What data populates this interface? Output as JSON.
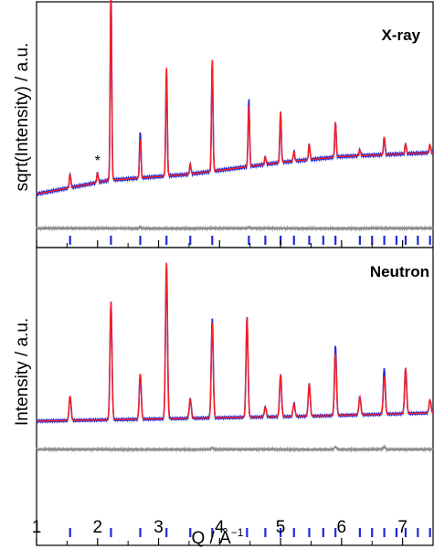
{
  "chart_data": [
    {
      "type": "line",
      "panel": "X-ray",
      "label": "X-ray",
      "ylabel": "sqrt(Intensity) / a.u.",
      "xlim": [
        1,
        7.5
      ],
      "colors": {
        "observed": "#1f2bd6",
        "calculated": "#ff1f1f",
        "difference": "#8c8c8c",
        "reflections": "#1f2bd6"
      },
      "annotation": "*",
      "annotation_x": 2.0,
      "baseline": [
        [
          1.0,
          0.1
        ],
        [
          2.2,
          0.17
        ],
        [
          3.5,
          0.2
        ],
        [
          5.0,
          0.26
        ],
        [
          6.0,
          0.29
        ],
        [
          7.5,
          0.31
        ]
      ],
      "peaks": [
        {
          "x": 1.55,
          "h": 0.07
        },
        {
          "x": 2.0,
          "h": 0.05
        },
        {
          "x": 2.22,
          "h": 1.0
        },
        {
          "x": 2.7,
          "h": 0.2
        },
        {
          "x": 3.13,
          "h": 0.55
        },
        {
          "x": 3.52,
          "h": 0.05
        },
        {
          "x": 3.88,
          "h": 0.57
        },
        {
          "x": 4.48,
          "h": 0.31
        },
        {
          "x": 4.75,
          "h": 0.04
        },
        {
          "x": 5.0,
          "h": 0.26
        },
        {
          "x": 5.22,
          "h": 0.05
        },
        {
          "x": 5.47,
          "h": 0.08
        },
        {
          "x": 5.9,
          "h": 0.18
        },
        {
          "x": 6.3,
          "h": 0.03
        },
        {
          "x": 6.7,
          "h": 0.09
        },
        {
          "x": 7.05,
          "h": 0.05
        },
        {
          "x": 7.45,
          "h": 0.04
        }
      ],
      "obs_excess": [
        [
          2.7,
          0.04
        ],
        [
          4.48,
          0.03
        ]
      ],
      "reflections": [
        1.55,
        2.22,
        2.7,
        3.13,
        3.52,
        3.88,
        4.48,
        4.75,
        5.0,
        5.22,
        5.47,
        5.7,
        5.9,
        6.3,
        6.5,
        6.7,
        6.9,
        7.05,
        7.25,
        7.45
      ]
    },
    {
      "type": "line",
      "panel": "Neutron",
      "label": "Neutron",
      "ylabel": "Intensity / a.u.",
      "xlabel": "Q / Å",
      "xlabel_sup": "−1",
      "xlim": [
        1,
        7.5
      ],
      "xticks": [
        1,
        2,
        3,
        4,
        5,
        6,
        7
      ],
      "colors": {
        "observed": "#1f2bd6",
        "calculated": "#ff1f1f",
        "difference": "#8c8c8c",
        "reflections": "#1f2bd6"
      },
      "baseline": [
        [
          1.0,
          0.05
        ],
        [
          2.5,
          0.06
        ],
        [
          4.0,
          0.07
        ],
        [
          5.5,
          0.08
        ],
        [
          7.5,
          0.1
        ]
      ],
      "peaks": [
        {
          "x": 1.55,
          "h": 0.15
        },
        {
          "x": 2.22,
          "h": 0.72
        },
        {
          "x": 2.7,
          "h": 0.28
        },
        {
          "x": 3.13,
          "h": 0.95
        },
        {
          "x": 3.52,
          "h": 0.12
        },
        {
          "x": 3.88,
          "h": 0.58
        },
        {
          "x": 4.45,
          "h": 0.61
        },
        {
          "x": 4.75,
          "h": 0.06
        },
        {
          "x": 5.0,
          "h": 0.26
        },
        {
          "x": 5.22,
          "h": 0.08
        },
        {
          "x": 5.47,
          "h": 0.2
        },
        {
          "x": 5.9,
          "h": 0.38
        },
        {
          "x": 6.3,
          "h": 0.11
        },
        {
          "x": 6.7,
          "h": 0.23
        },
        {
          "x": 7.05,
          "h": 0.28
        },
        {
          "x": 7.45,
          "h": 0.08
        }
      ],
      "obs_excess": [
        [
          5.9,
          0.05
        ],
        [
          6.7,
          0.05
        ],
        [
          3.88,
          0.03
        ]
      ],
      "reflections": [
        1.55,
        2.22,
        2.7,
        3.13,
        3.52,
        3.88,
        4.45,
        4.75,
        5.0,
        5.22,
        5.47,
        5.7,
        5.9,
        6.3,
        6.5,
        6.7,
        6.9,
        7.05,
        7.25,
        7.45
      ]
    }
  ]
}
